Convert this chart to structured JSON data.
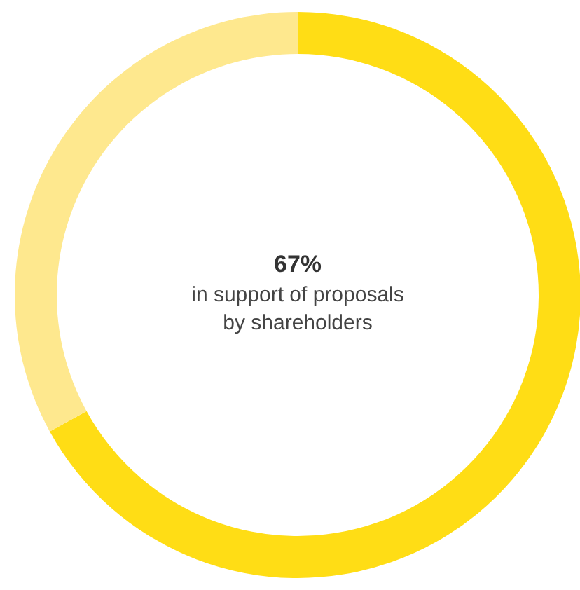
{
  "chart_data": {
    "type": "donut",
    "categories": [
      null,
      null
    ],
    "values": [
      67,
      33
    ],
    "colors": [
      "#ffdd15",
      "#fee88e"
    ],
    "value_labels": [
      "67%",
      null
    ],
    "annotations": [
      "in support of proposals by shareholders"
    ]
  }
}
